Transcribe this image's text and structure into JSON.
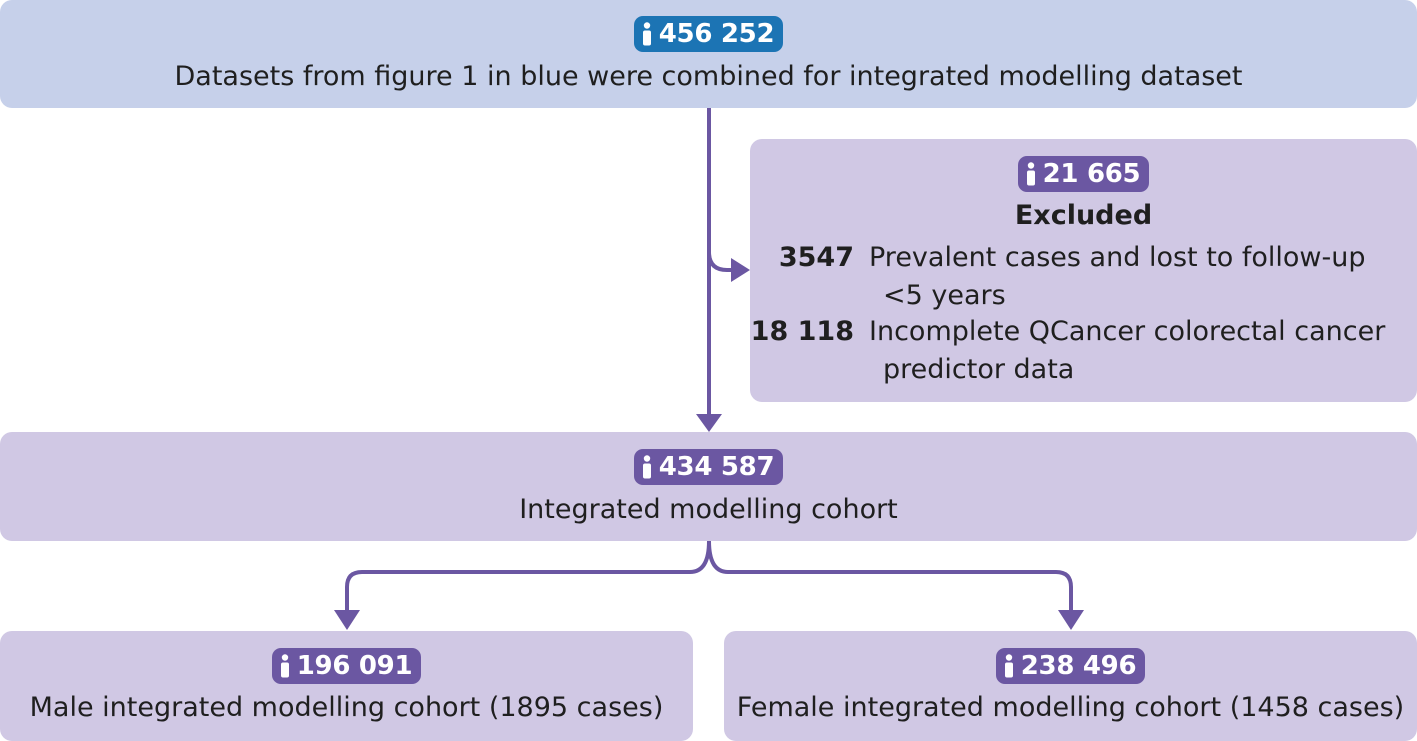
{
  "top": {
    "count": "456 252",
    "text": "Datasets from figure 1 in blue were combined for integrated modelling dataset"
  },
  "excluded": {
    "count": "21 665",
    "title": "Excluded",
    "items": [
      {
        "number": "3547",
        "line1": "Prevalent cases and lost to follow-up",
        "line2": "<5 years"
      },
      {
        "number": "18 118",
        "line1": "Incomplete QCancer colorectal cancer",
        "line2": "predictor data"
      }
    ]
  },
  "middle": {
    "count": "434 587",
    "text": "Integrated modelling cohort"
  },
  "male": {
    "count": "196 091",
    "text": "Male integrated modelling cohort (1895 cases)"
  },
  "female": {
    "count": "238 496",
    "text": "Female integrated modelling cohort (1458 cases)"
  },
  "colors": {
    "blue_box": "#c6d0ea",
    "purple_box": "#d0c8e4",
    "blue_badge": "#1c74b4",
    "purple_badge": "#6b57a2",
    "arrow": "#6b57a2"
  },
  "icons": {
    "person": "person-icon",
    "arrow": "arrowhead-icon"
  }
}
